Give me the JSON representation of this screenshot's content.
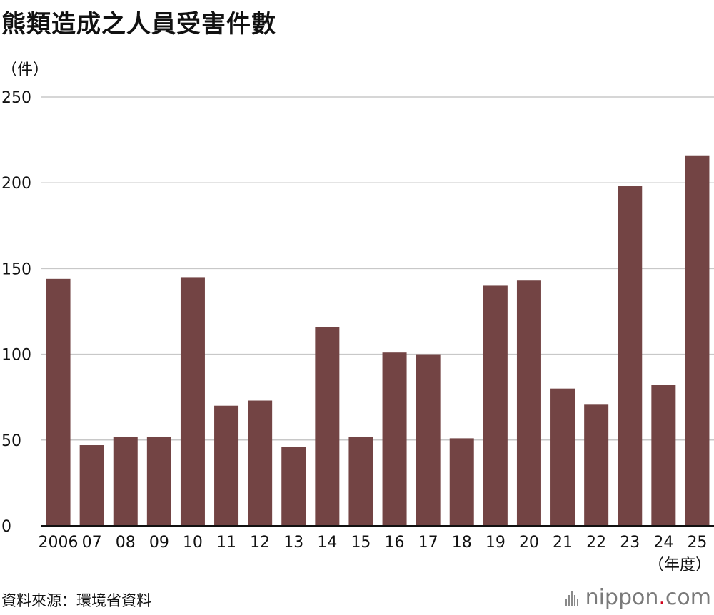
{
  "title": "熊類造成之人員受害件數",
  "unit_label": "（件）",
  "source": "資料來源：環境省資料",
  "brand": {
    "name_left": "nippon",
    "name_dot": ".",
    "name_right": "com",
    "icon": "nippon-logo-icon"
  },
  "colors": {
    "bar": "#734444",
    "grid": "#c8c8c8",
    "axis": "#111111",
    "brand_dot": "#d0021b"
  },
  "chart_data": {
    "type": "bar",
    "title": "熊類造成之人員受害件數",
    "xlabel": "（年度）",
    "ylabel": "（件）",
    "ylim": [
      0,
      250
    ],
    "yticks": [
      0,
      50,
      100,
      150,
      200,
      250
    ],
    "grid": true,
    "categories": [
      "2006",
      "07",
      "08",
      "09",
      "10",
      "11",
      "12",
      "13",
      "14",
      "15",
      "16",
      "17",
      "18",
      "19",
      "20",
      "21",
      "22",
      "23",
      "24",
      "25"
    ],
    "values": [
      144,
      47,
      52,
      52,
      145,
      70,
      73,
      46,
      116,
      52,
      101,
      100,
      51,
      140,
      143,
      80,
      71,
      198,
      82,
      216
    ]
  }
}
